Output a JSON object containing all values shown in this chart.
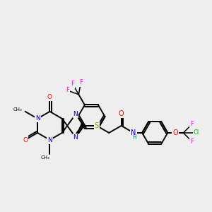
{
  "background_color": "#eeeeee",
  "bond_color": "#000000",
  "atom_colors": {
    "N": "#0000ff",
    "O": "#ff0000",
    "S": "#999900",
    "F": "#ff00ff",
    "Cl": "#00bb00",
    "H": "#008888",
    "C": "#000000"
  },
  "figsize": [
    3.0,
    3.0
  ],
  "dpi": 100
}
